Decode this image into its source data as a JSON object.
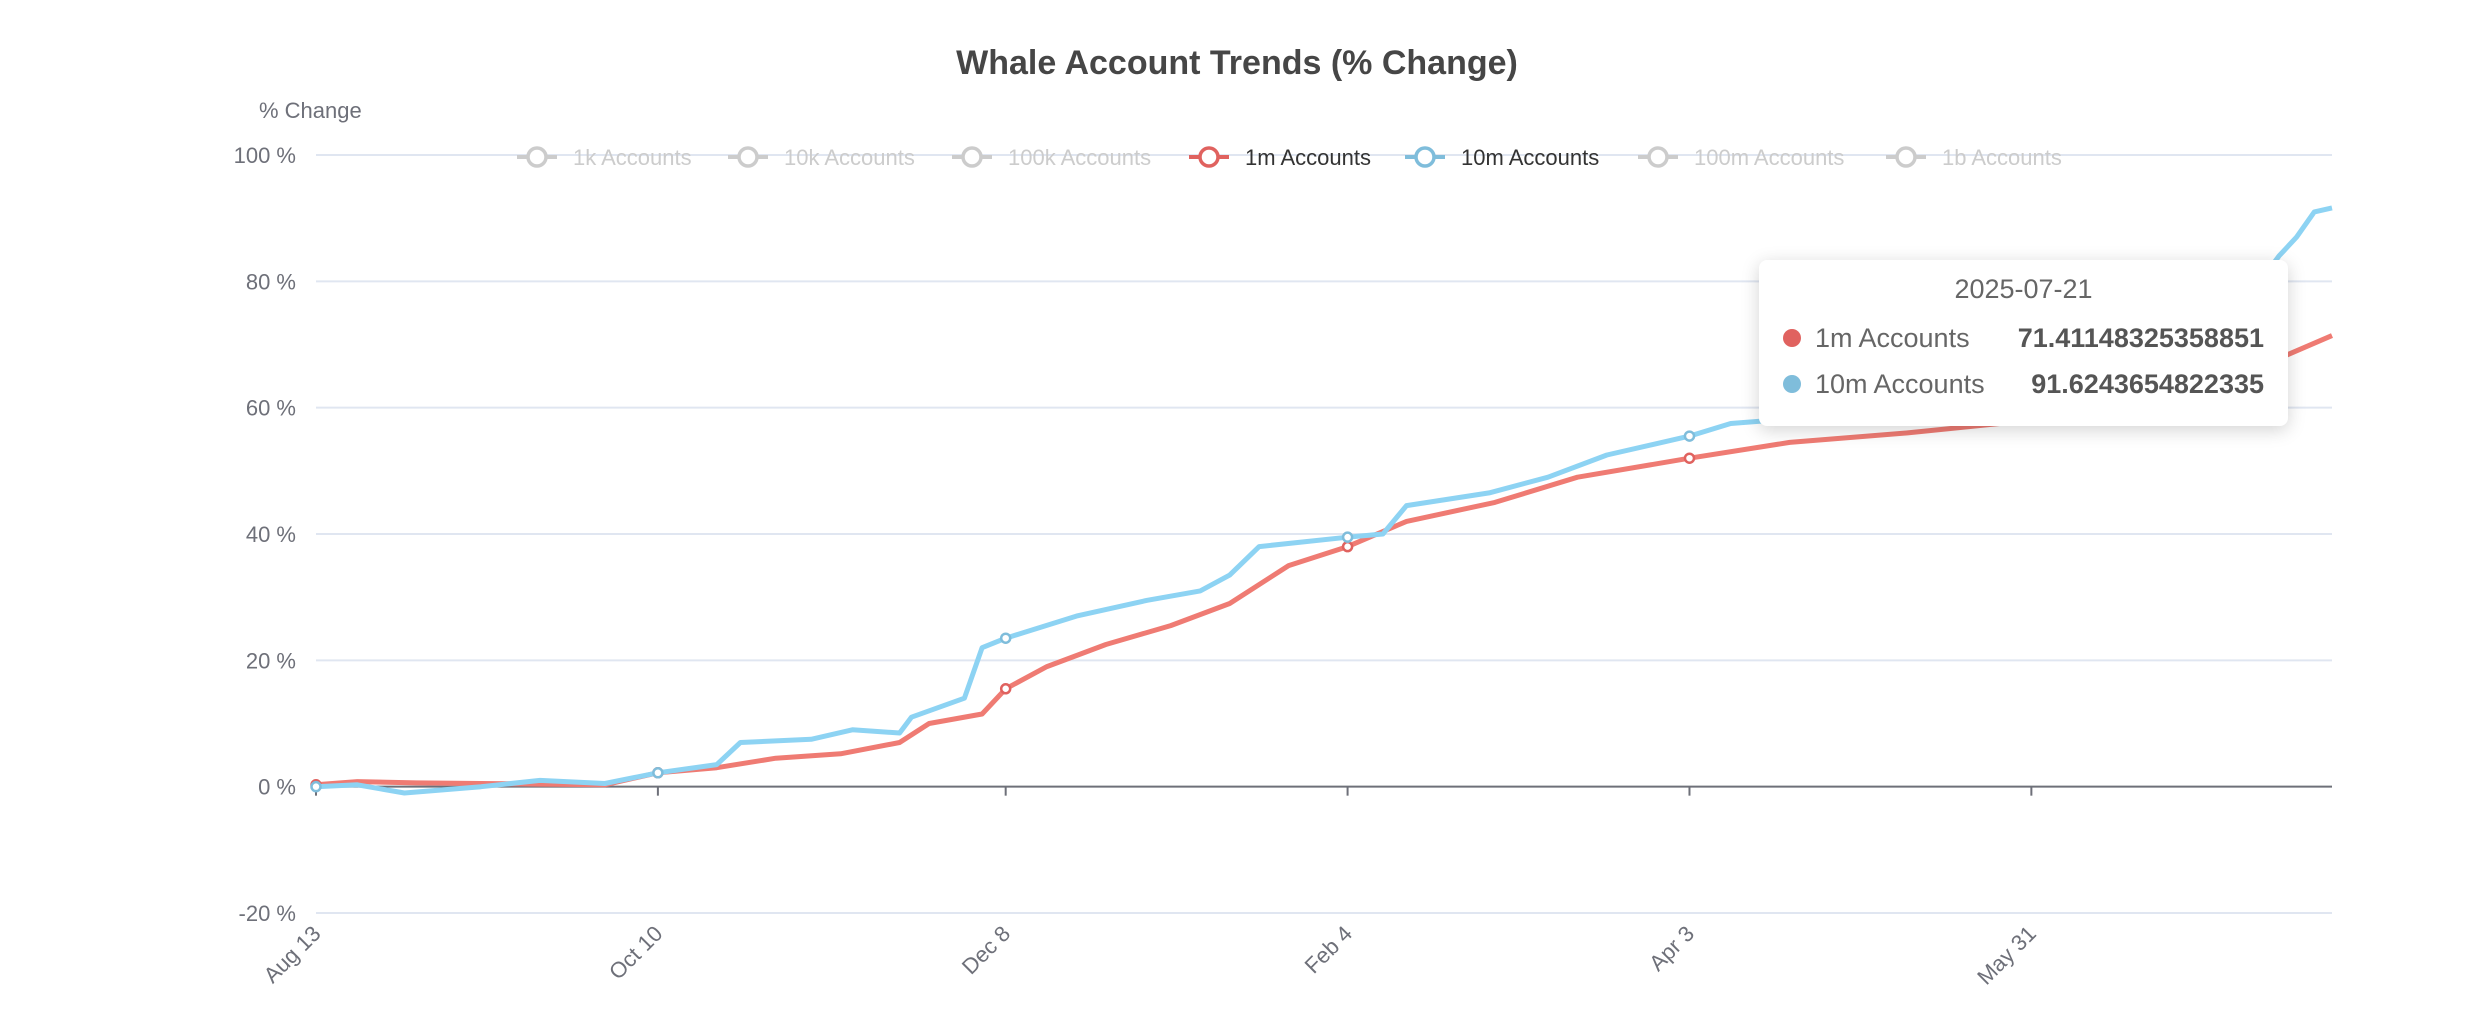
{
  "chart_data": {
    "type": "line",
    "title": "Whale Account Trends (% Change)",
    "ylabel": "% Change",
    "ylim": [
      -20,
      100
    ],
    "y_ticks": [
      "-20 %",
      "0 %",
      "20 %",
      "40 %",
      "60 %",
      "80 %",
      "100 %"
    ],
    "y_tick_values": [
      -20,
      0,
      20,
      40,
      60,
      80,
      100
    ],
    "x_range": [
      "2024-08-13",
      "2025-07-21"
    ],
    "x_ticks": [
      {
        "label": "Aug 13",
        "date": "2024-08-13"
      },
      {
        "label": "Oct 10",
        "date": "2024-10-10"
      },
      {
        "label": "Dec 8",
        "date": "2024-12-08"
      },
      {
        "label": "Feb 4",
        "date": "2025-02-04"
      },
      {
        "label": "Apr 3",
        "date": "2025-04-03"
      },
      {
        "label": "May 31",
        "date": "2025-05-31"
      }
    ],
    "grid": true,
    "legend": {
      "placement": "top",
      "items": [
        {
          "label": "1k Accounts",
          "active": false
        },
        {
          "label": "10k Accounts",
          "active": false
        },
        {
          "label": "100k Accounts",
          "active": false
        },
        {
          "label": "1m Accounts",
          "active": true,
          "color": "#e0625f"
        },
        {
          "label": "10m Accounts",
          "active": true,
          "color": "#7fbddb"
        },
        {
          "label": "100m Accounts",
          "active": false
        },
        {
          "label": "1b Accounts",
          "active": false
        }
      ]
    },
    "series": [
      {
        "name": "1m Accounts",
        "color": "#ef7b73",
        "points": [
          [
            "2024-08-13",
            0.3
          ],
          [
            "2024-08-20",
            0.8
          ],
          [
            "2024-08-30",
            0.6
          ],
          [
            "2024-09-10",
            0.5
          ],
          [
            "2024-09-20",
            0.4
          ],
          [
            "2024-10-01",
            0.3
          ],
          [
            "2024-10-10",
            2.2
          ],
          [
            "2024-10-20",
            3.0
          ],
          [
            "2024-10-30",
            4.5
          ],
          [
            "2024-11-10",
            5.2
          ],
          [
            "2024-11-20",
            7.0
          ],
          [
            "2024-11-25",
            10.0
          ],
          [
            "2024-12-04",
            11.5
          ],
          [
            "2024-12-08",
            15.5
          ],
          [
            "2024-12-15",
            19.0
          ],
          [
            "2024-12-25",
            22.5
          ],
          [
            "2025-01-05",
            25.5
          ],
          [
            "2025-01-15",
            29.0
          ],
          [
            "2025-01-25",
            35.0
          ],
          [
            "2025-02-04",
            38.0
          ],
          [
            "2025-02-14",
            42.0
          ],
          [
            "2025-03-01",
            45.0
          ],
          [
            "2025-03-15",
            49.0
          ],
          [
            "2025-04-03",
            52.0
          ],
          [
            "2025-04-20",
            54.5
          ],
          [
            "2025-05-10",
            56.0
          ],
          [
            "2025-05-31",
            58.0
          ],
          [
            "2025-06-15",
            60.0
          ],
          [
            "2025-07-01",
            63.0
          ],
          [
            "2025-07-10",
            67.0
          ],
          [
            "2025-07-21",
            71.41148325358851
          ]
        ]
      },
      {
        "name": "10m Accounts",
        "color": "#8dd3f3",
        "points": [
          [
            "2024-08-13",
            0.0
          ],
          [
            "2024-08-20",
            0.3
          ],
          [
            "2024-08-28",
            -1.0
          ],
          [
            "2024-09-10",
            0.0
          ],
          [
            "2024-09-20",
            1.0
          ],
          [
            "2024-10-01",
            0.5
          ],
          [
            "2024-10-10",
            2.2
          ],
          [
            "2024-10-20",
            3.5
          ],
          [
            "2024-10-24",
            7.0
          ],
          [
            "2024-11-05",
            7.5
          ],
          [
            "2024-11-12",
            9.0
          ],
          [
            "2024-11-20",
            8.5
          ],
          [
            "2024-11-22",
            11.0
          ],
          [
            "2024-12-01",
            14.0
          ],
          [
            "2024-12-04",
            22.0
          ],
          [
            "2024-12-08",
            23.5
          ],
          [
            "2024-12-20",
            27.0
          ],
          [
            "2025-01-01",
            29.5
          ],
          [
            "2025-01-10",
            31.0
          ],
          [
            "2025-01-15",
            33.5
          ],
          [
            "2025-01-20",
            38.0
          ],
          [
            "2025-02-04",
            39.5
          ],
          [
            "2025-02-10",
            40.0
          ],
          [
            "2025-02-14",
            44.5
          ],
          [
            "2025-02-28",
            46.5
          ],
          [
            "2025-03-10",
            49.0
          ],
          [
            "2025-03-20",
            52.5
          ],
          [
            "2025-04-03",
            55.5
          ],
          [
            "2025-04-10",
            57.5
          ],
          [
            "2025-05-01",
            59.0
          ],
          [
            "2025-06-01",
            62.0
          ],
          [
            "2025-07-01",
            70.0
          ],
          [
            "2025-07-12",
            84.0
          ],
          [
            "2025-07-15",
            87.0
          ],
          [
            "2025-07-18",
            91.0
          ],
          [
            "2025-07-21",
            91.6243654822335
          ]
        ]
      }
    ],
    "symbol_dates": [
      "2024-08-13",
      "2024-10-10",
      "2024-12-08",
      "2025-02-04",
      "2025-04-03"
    ],
    "tooltip": {
      "date": "2025-07-21",
      "rows": [
        {
          "label": "1m Accounts",
          "value": "71.41148325358851",
          "color": "#e0625f"
        },
        {
          "label": "10m Accounts",
          "value": "91.6243654822335",
          "color": "#7fbddb"
        }
      ]
    }
  }
}
